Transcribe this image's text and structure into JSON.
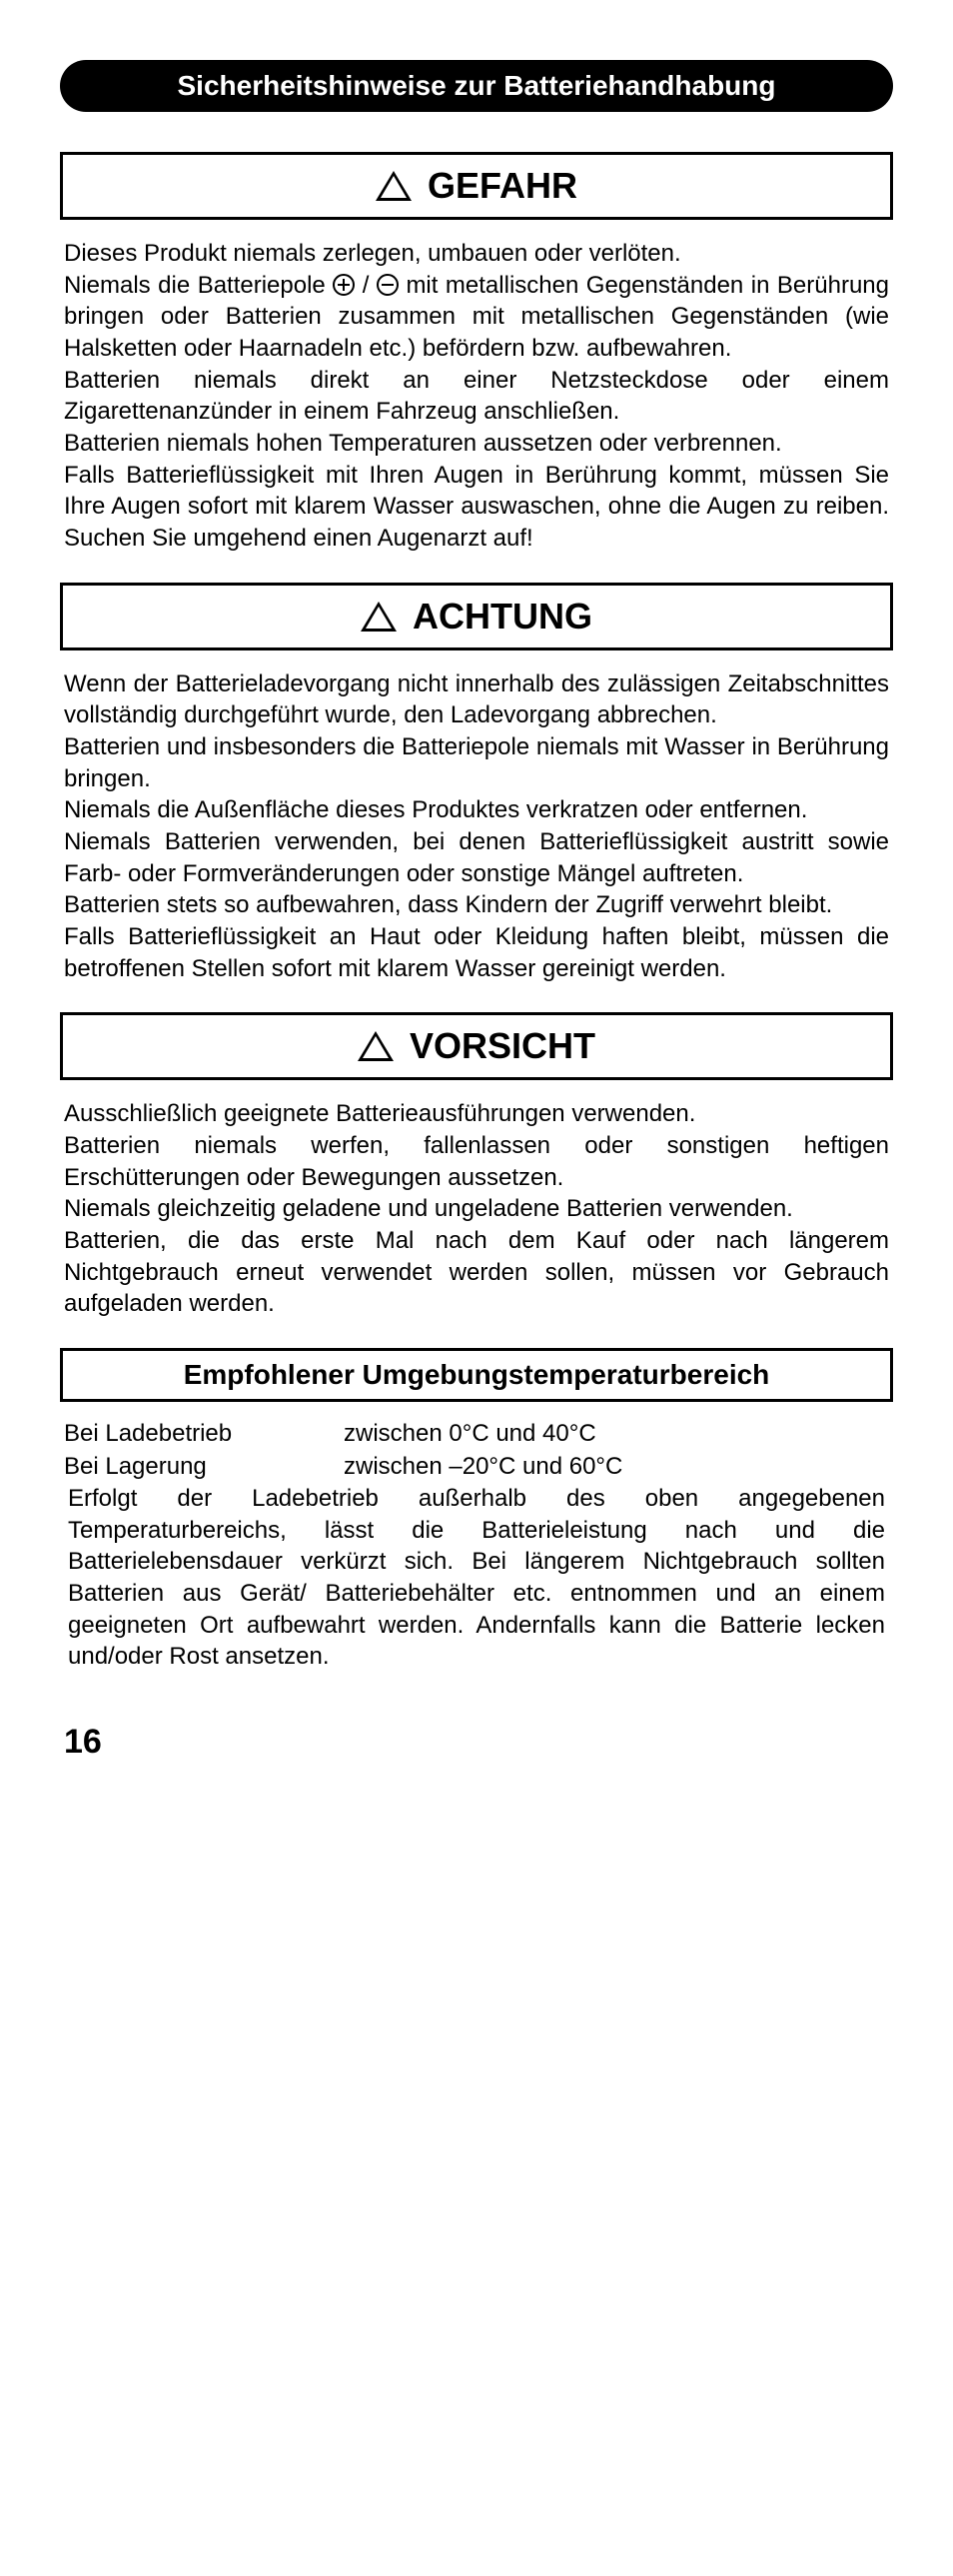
{
  "header": "Sicherheitshinweise zur Batteriehandhabung",
  "gefahr": {
    "label": "GEFAHR",
    "p1": "Dieses Produkt niemals zerlegen, umbauen oder verlöten.",
    "p2a": "Niemals die Batteriepole ",
    "p2b": " mit metallischen Gegenständen in Berührung bringen oder Batterien zusammen mit metallischen Gegenständen (wie Halsketten oder Haarnadeln etc.) befördern bzw. aufbewahren.",
    "p3": "Batterien niemals direkt an einer Netzsteckdose oder einem Zigarettenanzünder in einem Fahrzeug anschließen.",
    "p4": "Batterien niemals hohen Temperaturen aussetzen oder verbrennen.",
    "p5": "Falls Batterieflüssigkeit mit Ihren Augen in Berührung kommt, müssen Sie Ihre Augen sofort mit klarem Wasser auswaschen, ohne die Augen zu reiben. Suchen Sie umgehend einen Augenarzt auf!"
  },
  "achtung": {
    "label": "ACHTUNG",
    "p1": "Wenn der Batterieladevorgang nicht innerhalb des zulässigen Zeitabschnittes vollständig durchgeführt wurde, den Ladevorgang abbrechen.",
    "p2": "Batterien und insbesonders die Batteriepole niemals mit Wasser in Berührung bringen.",
    "p3": "Niemals die Außenfläche dieses Produktes verkratzen oder entfernen.",
    "p4": "Niemals Batterien verwenden, bei denen Batterieflüssigkeit austritt sowie Farb- oder Formveränderungen oder sonstige Mängel auftreten.",
    "p5": "Batterien stets so aufbewahren, dass Kindern der Zugriff verwehrt bleibt.",
    "p6": "Falls Batterieflüssigkeit an Haut oder Kleidung haften bleibt, müssen die betroffenen Stellen sofort mit klarem Wasser gereinigt werden."
  },
  "vorsicht": {
    "label": "VORSICHT",
    "p1": "Ausschließlich geeignete Batterieausführungen verwenden.",
    "p2": "Batterien niemals werfen, fallenlassen oder sonstigen heftigen Erschütterungen oder Bewegungen aussetzen.",
    "p3": "Niemals gleichzeitig geladene und ungeladene Batterien verwenden.",
    "p4": "Batterien, die das erste Mal nach dem Kauf oder nach längerem Nichtgebrauch erneut verwendet werden sollen, müssen vor Gebrauch aufgeladen werden."
  },
  "temp": {
    "title": "Empfohlener Umgebungstemperaturbereich",
    "row1_label": "Bei Ladebetrieb",
    "row1_value": "zwischen  0°C und 40°C",
    "row2_label": "Bei Lagerung",
    "row2_value": "zwischen –20°C und 60°C",
    "text": "Erfolgt der Ladebetrieb außerhalb des oben angegebenen Temperaturbereichs, lässt die Batterieleistung nach und die Batterielebensdauer verkürzt sich. Bei längerem Nichtgebrauch sollten Batterien aus Gerät/ Batteriebehälter etc. entnommen und an einem geeigneten Ort aufbewahrt werden. Andernfalls kann die Batterie lecken und/oder Rost ansetzen."
  },
  "page": "16"
}
